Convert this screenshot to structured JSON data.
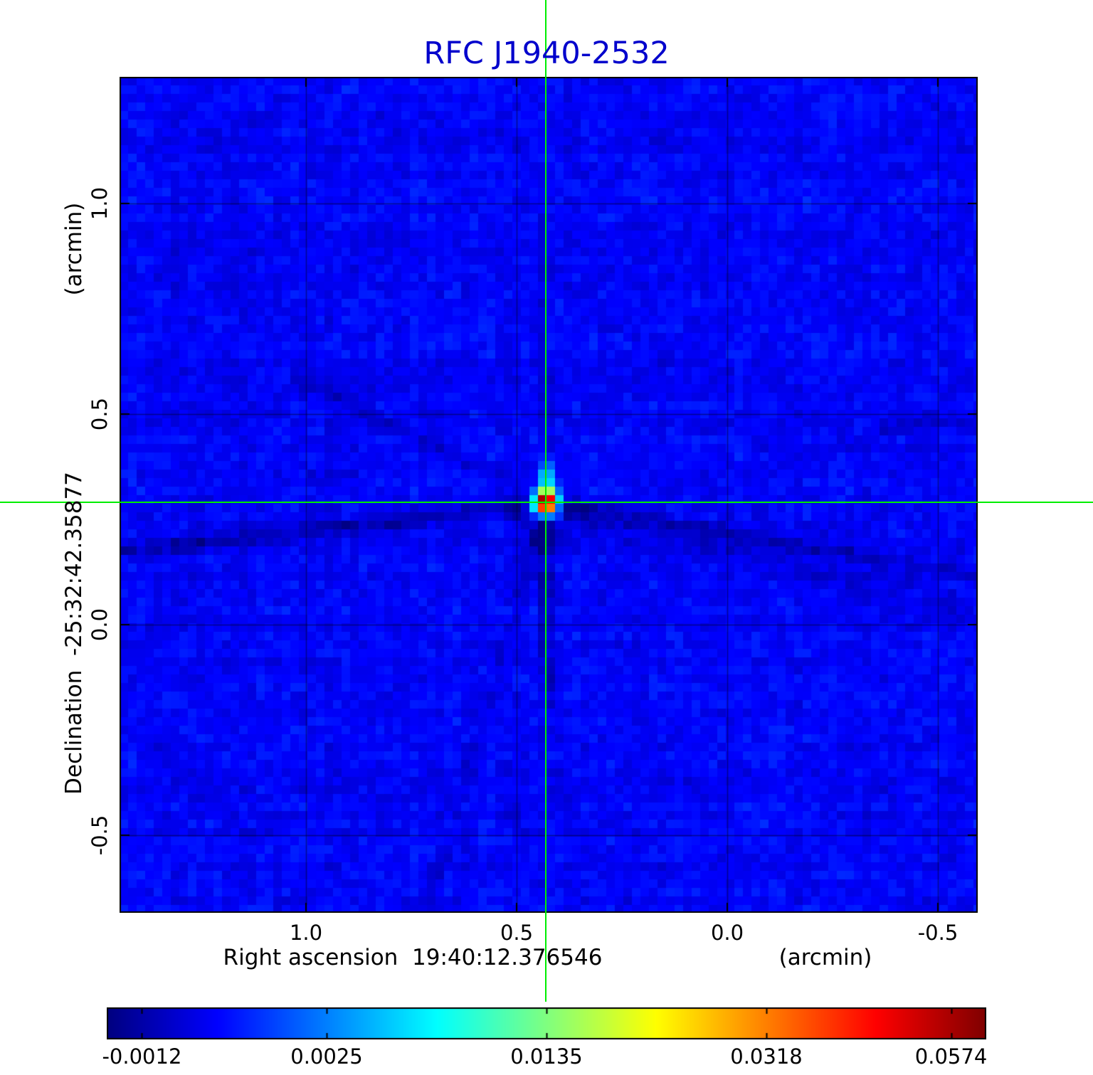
{
  "title": {
    "text": "RFC J1940-2532",
    "color": "#0000cc"
  },
  "chart_data": {
    "type": "heatmap",
    "colormap": "jet",
    "x_axis": {
      "label": "Right ascension  19:40:12.376546",
      "unit": "(arcmin)",
      "ticks": [
        "1.0",
        "0.5",
        "0.0",
        "-0.5"
      ],
      "range_arcmin": [
        1.44,
        -0.59
      ]
    },
    "y_axis": {
      "label": "Declination  -25:32:42.35877",
      "unit": "(arcmin)",
      "ticks": [
        "1.0",
        "0.5",
        "0.0",
        "-0.5"
      ],
      "range_arcmin": [
        -0.67,
        1.3
      ]
    },
    "source_peak": {
      "ra_offset_arcmin": 0.43,
      "dec_offset_arcmin": 0.29,
      "peak_value": 0.0574
    },
    "crosshair_color": "#00ee00",
    "grid": true,
    "colorbar": {
      "ticks": [
        "-0.0012",
        "0.0025",
        "0.0135",
        "0.0318",
        "0.0574"
      ],
      "tick_positions": [
        0.04,
        0.25,
        0.5,
        0.75,
        0.96
      ],
      "min": -0.0012,
      "max": 0.0574,
      "scale": "nonlinear"
    }
  }
}
